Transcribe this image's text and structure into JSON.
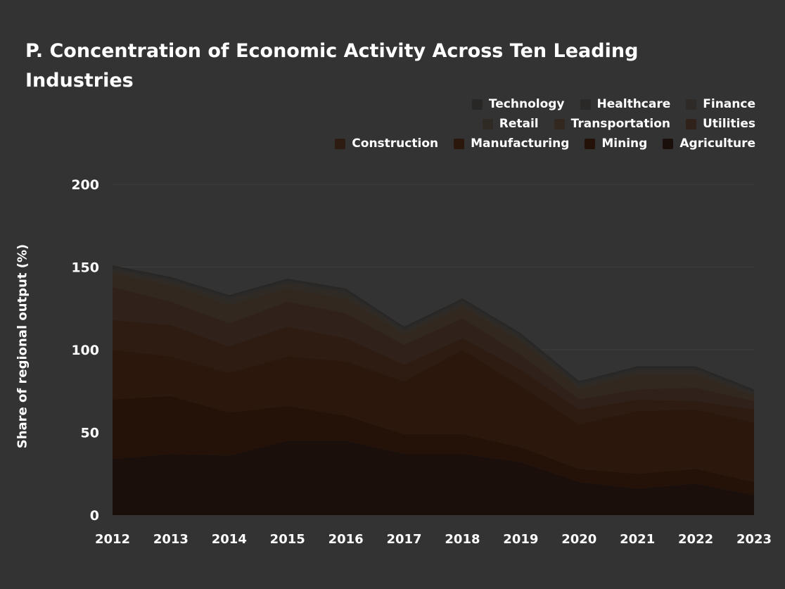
{
  "chart_data": {
    "type": "area",
    "stacked": true,
    "title": "P. Concentration of Economic Activity Across Ten Leading Industries",
    "ylabel": "Share of regional output (%)",
    "xlabel": "",
    "categories": [
      "2012",
      "2013",
      "2014",
      "2015",
      "2016",
      "2017",
      "2018",
      "2019",
      "2020",
      "2021",
      "2022",
      "2023"
    ],
    "ylim": [
      0,
      200
    ],
    "yticks": [
      0,
      50,
      100,
      150,
      200
    ],
    "grid": true,
    "legend_position": "top-right",
    "series": [
      {
        "name": "Agriculture",
        "color": "#1a0f0a",
        "values": [
          34,
          37,
          36,
          45,
          45,
          37,
          37,
          32,
          20,
          16,
          19,
          12
        ]
      },
      {
        "name": "Mining",
        "color": "#241209",
        "values": [
          36,
          35,
          26,
          21,
          15,
          12,
          12,
          9,
          8,
          9,
          9,
          8
        ]
      },
      {
        "name": "Manufacturing",
        "color": "#2b170c",
        "values": [
          30,
          24,
          24,
          30,
          33,
          32,
          51,
          37,
          27,
          38,
          36,
          36
        ]
      },
      {
        "name": "Construction",
        "color": "#2e1c12",
        "values": [
          18,
          19,
          16,
          18,
          14,
          10,
          7,
          10,
          9,
          7,
          5,
          8
        ]
      },
      {
        "name": "Utilities",
        "color": "#30221a",
        "values": [
          20,
          14,
          14,
          15,
          15,
          12,
          12,
          9,
          6,
          6,
          8,
          5
        ]
      },
      {
        "name": "Transportation",
        "color": "#322820",
        "values": [
          8,
          10,
          11,
          8,
          9,
          6,
          7,
          8,
          6,
          9,
          8,
          3
        ]
      },
      {
        "name": "Retail",
        "color": "#302a25",
        "values": [
          2,
          2,
          3,
          3,
          3,
          2,
          2,
          2,
          2,
          2,
          2,
          1
        ]
      },
      {
        "name": "Finance",
        "color": "#2e2a27",
        "values": [
          1,
          1,
          1,
          1,
          1,
          1,
          1,
          1,
          1,
          1,
          1,
          1
        ]
      },
      {
        "name": "Healthcare",
        "color": "#2b2928",
        "values": [
          1,
          1,
          1,
          1,
          1,
          1,
          1,
          1,
          1,
          1,
          1,
          1
        ]
      },
      {
        "name": "Technology",
        "color": "#292725",
        "values": [
          1,
          1,
          1,
          1,
          1,
          1,
          1,
          1,
          1,
          1,
          1,
          1
        ]
      }
    ],
    "legend_rows": [
      [
        "Technology",
        "Healthcare",
        "Finance"
      ],
      [
        "Retail",
        "Transportation",
        "Utilities"
      ],
      [
        "Construction",
        "Manufacturing",
        "Mining",
        "Agriculture"
      ]
    ]
  }
}
